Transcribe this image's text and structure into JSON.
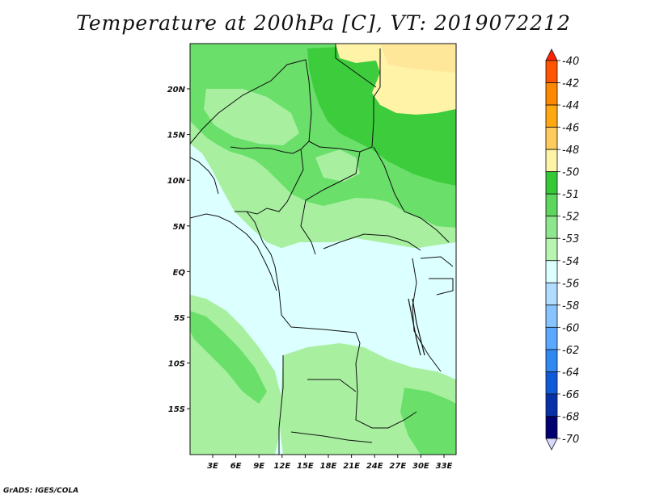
{
  "title": "Temperature at 200hPa [C], VT: 2019072212",
  "credit": "GrADS: IGES/COLA",
  "lat_labels": [
    "20N",
    "15N",
    "10N",
    "5N",
    "EQ",
    "5S",
    "10S",
    "15S"
  ],
  "lon_labels": [
    "3E",
    "6E",
    "9E",
    "12E",
    "15E",
    "18E",
    "21E",
    "24E",
    "27E",
    "30E",
    "33E"
  ],
  "colorbar": {
    "labels": [
      "-40",
      "-42",
      "-44",
      "-46",
      "-48",
      "-50",
      "-51",
      "-52",
      "-53",
      "-54",
      "-56",
      "-58",
      "-60",
      "-62",
      "-64",
      "-66",
      "-68",
      "-70"
    ],
    "colors": [
      "#ff2200",
      "#ff5500",
      "#ff8800",
      "#ffa812",
      "#ffcb5c",
      "#fff3a8",
      "#36c936",
      "#5cd65c",
      "#8ee68e",
      "#b8f5b0",
      "#dcffff",
      "#b0dcff",
      "#88c4ff",
      "#5aa8ff",
      "#3088f0",
      "#0f5ad8",
      "#0830a8",
      "#000070",
      "#d8d8ff"
    ]
  },
  "fill_colors": {
    "yellow_light": "#fff3a8",
    "yellow": "#ffe79a",
    "green_52": "#3ccc3c",
    "green_53": "#6adf6a",
    "green_54": "#a8f0a0",
    "cyan_56": "#dcffff"
  }
}
